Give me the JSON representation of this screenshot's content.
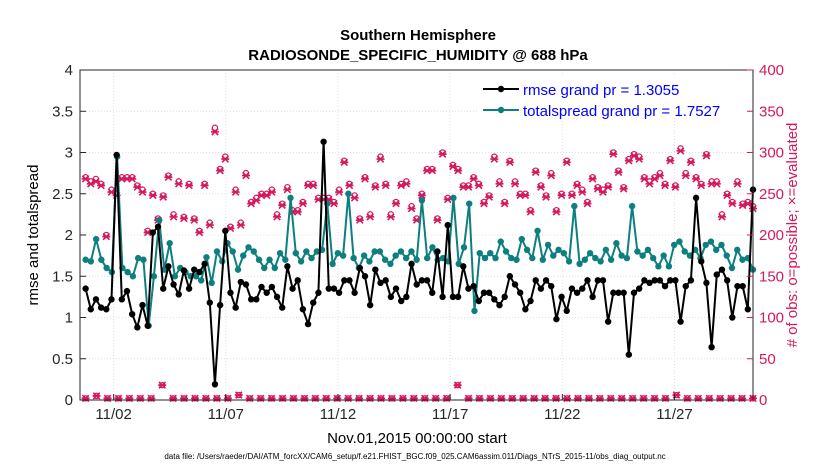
{
  "chart_data": {
    "type": "line",
    "title_line1": "Southern Hemisphere",
    "title_line2": "RADIOSONDE_SPECIFIC_HUMIDITY @ 688 hPa",
    "xlabel": "Nov.01,2015 00:00:00 start",
    "ylabel": "rmse and totalspread",
    "ylabel_right": "# of obs: o=possible; ×=evaluated",
    "footnote": "data file: /Users/raeder/DAI/ATM_forcXX/CAM6_setup/f.e21.FHIST_BGC.f09_025.CAM6assim.011/Diags_NTrS_2015-11/obs_diag_output.nc",
    "x_range_days": [
      0.5,
      30.5
    ],
    "ylim": [
      0,
      4
    ],
    "ylim_right": [
      0,
      400
    ],
    "yticks": [
      0,
      0.5,
      1,
      1.5,
      2,
      2.5,
      3,
      3.5,
      4
    ],
    "yticks_right": [
      0,
      50,
      100,
      150,
      200,
      250,
      300,
      350,
      400
    ],
    "xticks": [
      {
        "day": 2,
        "label": "11/02"
      },
      {
        "day": 7,
        "label": "11/07"
      },
      {
        "day": 12,
        "label": "11/12"
      },
      {
        "day": 17,
        "label": "11/17"
      },
      {
        "day": 22,
        "label": "11/22"
      },
      {
        "day": 27,
        "label": "11/27"
      }
    ],
    "colors": {
      "rmse": "#000000",
      "spread": "#0e7f7f",
      "obs": "#d6185f",
      "legend_text": "#0000ff"
    },
    "series": [
      {
        "name": "rmse grand pr = 1.3055",
        "key": "rmse",
        "values": [
          1.35,
          1.1,
          1.22,
          1.12,
          1.1,
          1.22,
          2.97,
          1.22,
          1.32,
          1.04,
          0.88,
          1.15,
          0.9,
          2.03,
          2.1,
          1.35,
          1.62,
          1.4,
          1.28,
          1.57,
          1.35,
          1.58,
          1.55,
          1.65,
          1.18,
          0.19,
          1.15,
          2.05,
          1.3,
          1.12,
          1.43,
          1.4,
          1.22,
          1.22,
          1.37,
          1.3,
          1.37,
          1.25,
          1.12,
          1.62,
          1.35,
          1.45,
          1.1,
          0.92,
          1.18,
          1.3,
          3.13,
          1.35,
          1.35,
          1.3,
          1.45,
          1.45,
          1.3,
          1.6,
          1.5,
          1.15,
          1.58,
          1.42,
          1.45,
          1.25,
          1.35,
          1.2,
          1.25,
          1.65,
          1.4,
          1.45,
          1.45,
          1.3,
          1.8,
          1.25,
          2.12,
          1.25,
          1.25,
          1.62,
          1.35,
          1.38,
          1.2,
          1.3,
          1.3,
          1.22,
          1.15,
          1.25,
          1.5,
          1.4,
          1.3,
          1.1,
          1.2,
          1.45,
          1.35,
          1.45,
          1.38,
          0.98,
          1.25,
          1.08,
          1.35,
          1.3,
          1.35,
          1.45,
          1.25,
          1.45,
          1.45,
          0.95,
          1.3,
          1.3,
          1.3,
          0.55,
          1.3,
          1.35,
          1.45,
          1.42,
          1.45,
          1.45,
          1.38,
          1.45,
          1.45,
          0.95,
          1.38,
          1.45,
          2.45,
          1.68,
          1.42,
          0.64,
          1.52,
          1.58,
          1.45,
          1.0,
          1.38,
          1.38,
          1.1,
          2.55
        ]
      },
      {
        "name": "totalspread grand pr = 1.7527",
        "key": "spread",
        "values": [
          1.7,
          1.68,
          1.95,
          1.7,
          1.6,
          1.55,
          2.95,
          1.6,
          1.55,
          1.5,
          1.72,
          1.7,
          0.9,
          1.5,
          2.18,
          1.58,
          1.9,
          1.5,
          1.6,
          1.55,
          1.5,
          1.5,
          1.45,
          1.73,
          1.42,
          1.8,
          1.68,
          1.9,
          1.8,
          1.58,
          1.75,
          1.85,
          1.8,
          1.7,
          1.6,
          1.7,
          1.6,
          1.78,
          1.7,
          2.45,
          1.78,
          1.68,
          1.8,
          1.72,
          1.8,
          1.82,
          2.38,
          1.65,
          1.78,
          1.75,
          2.5,
          1.72,
          1.6,
          1.75,
          1.68,
          1.8,
          1.8,
          1.7,
          1.65,
          1.75,
          1.8,
          1.72,
          1.8,
          1.7,
          2.42,
          1.72,
          1.85,
          1.7,
          1.72,
          1.68,
          2.45,
          1.65,
          1.85,
          2.38,
          1.08,
          1.78,
          1.72,
          1.78,
          1.72,
          1.92,
          1.8,
          1.72,
          1.7,
          1.95,
          1.82,
          1.72,
          2.05,
          1.7,
          1.88,
          1.75,
          1.82,
          1.78,
          1.68,
          2.35,
          1.65,
          1.7,
          1.78,
          1.72,
          1.68,
          1.82,
          1.7,
          1.9,
          1.75,
          1.72,
          2.35,
          1.8,
          1.75,
          1.82,
          1.72,
          1.62,
          1.75,
          1.62,
          1.88,
          1.92,
          1.8,
          1.75,
          1.82,
          1.72,
          1.88,
          1.92,
          1.82,
          1.88,
          1.75,
          1.6,
          1.82,
          1.7,
          1.72,
          1.58
        ]
      }
    ],
    "obs_possible": [
      270,
      265,
      268,
      262,
      200,
      255,
      250,
      270,
      270,
      270,
      260,
      255,
      205,
      250,
      220,
      248,
      272,
      225,
      265,
      222,
      262,
      220,
      205,
      262,
      215,
      330,
      280,
      295,
      210,
      255,
      215,
      275,
      240,
      245,
      250,
      250,
      255,
      225,
      238,
      258,
      230,
      230,
      240,
      262,
      262,
      245,
      245,
      245,
      240,
      255,
      290,
      262,
      248,
      220,
      270,
      225,
      260,
      295,
      262,
      225,
      240,
      262,
      265,
      235,
      220,
      250,
      280,
      280,
      220,
      300,
      245,
      285,
      280,
      260,
      260,
      270,
      262,
      240,
      248,
      295,
      265,
      240,
      290,
      265,
      250,
      250,
      230,
      278,
      260,
      248,
      275,
      230,
      250,
      290,
      250,
      262,
      255,
      240,
      270,
      258,
      255,
      260,
      300,
      278,
      258,
      292,
      298,
      295,
      270,
      265,
      270,
      275,
      262,
      292,
      260,
      305,
      275,
      290,
      270,
      262,
      298,
      265,
      265,
      225,
      250,
      240,
      265,
      238,
      240,
      235
    ],
    "obs_evaluated": [
      268,
      262,
      265,
      260,
      198,
      252,
      248,
      268,
      268,
      268,
      258,
      252,
      203,
      248,
      218,
      246,
      270,
      222,
      262,
      220,
      260,
      218,
      203,
      260,
      212,
      325,
      278,
      292,
      208,
      252,
      212,
      272,
      238,
      242,
      248,
      248,
      252,
      222,
      236,
      255,
      228,
      228,
      238,
      260,
      260,
      243,
      243,
      243,
      238,
      252,
      288,
      260,
      245,
      218,
      268,
      222,
      258,
      292,
      260,
      222,
      238,
      260,
      262,
      232,
      218,
      248,
      278,
      278,
      218,
      298,
      243,
      283,
      278,
      258,
      258,
      268,
      260,
      238,
      246,
      292,
      262,
      238,
      288,
      262,
      248,
      248,
      228,
      276,
      258,
      246,
      272,
      228,
      248,
      288,
      248,
      260,
      252,
      238,
      268,
      256,
      252,
      258,
      298,
      276,
      256,
      290,
      296,
      292,
      268,
      262,
      268,
      272,
      260,
      290,
      258,
      302,
      272,
      288,
      268,
      260,
      296,
      262,
      262,
      222,
      248,
      238,
      262,
      236,
      238,
      232
    ],
    "obs_zero_possible": [
      2,
      5,
      2,
      2,
      2,
      2,
      2,
      18,
      2,
      2,
      2,
      2,
      2,
      2,
      6,
      2,
      2,
      2,
      2,
      2,
      2,
      2,
      2,
      2,
      2,
      2,
      2,
      2,
      2,
      2,
      2,
      2,
      2,
      2,
      18,
      2,
      2,
      2,
      2,
      2,
      2,
      2,
      2,
      2,
      2,
      2,
      2,
      2,
      2,
      2,
      2,
      2,
      2,
      2,
      6,
      2,
      2,
      2,
      2,
      2,
      2,
      2
    ],
    "obs_zero_evaluated": [
      2,
      5,
      2,
      2,
      2,
      2,
      2,
      18,
      2,
      2,
      2,
      2,
      2,
      2,
      6,
      2,
      2,
      2,
      2,
      2,
      2,
      2,
      2,
      2,
      2,
      2,
      2,
      2,
      2,
      2,
      2,
      2,
      2,
      2,
      18,
      2,
      2,
      2,
      2,
      2,
      2,
      2,
      2,
      2,
      2,
      2,
      2,
      2,
      2,
      2,
      2,
      2,
      2,
      2,
      6,
      2,
      2,
      2,
      2,
      2,
      2,
      2
    ]
  }
}
